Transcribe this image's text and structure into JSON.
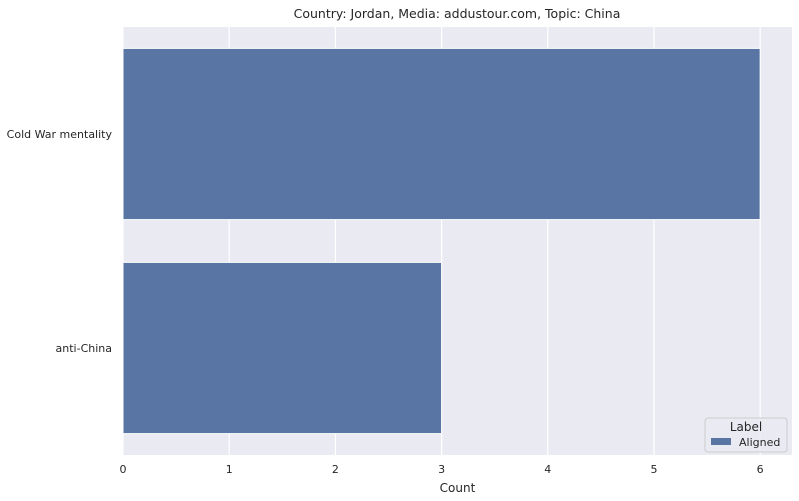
{
  "chart_data": {
    "type": "bar",
    "orientation": "horizontal",
    "title": "Country: Jordan, Media: addustour.com, Topic: China",
    "xlabel": "Count",
    "ylabel": "",
    "categories": [
      "Cold War mentality",
      "anti-China"
    ],
    "series": [
      {
        "name": "Aligned",
        "values": [
          6,
          3
        ],
        "color": "#5875a4"
      }
    ],
    "xlim": [
      0,
      6.3
    ],
    "xticks": [
      0,
      1,
      2,
      3,
      4,
      5,
      6
    ],
    "grid": true,
    "background_color": "#eaeaf2",
    "legend": {
      "title": "Label",
      "placement": "lower-right"
    }
  }
}
